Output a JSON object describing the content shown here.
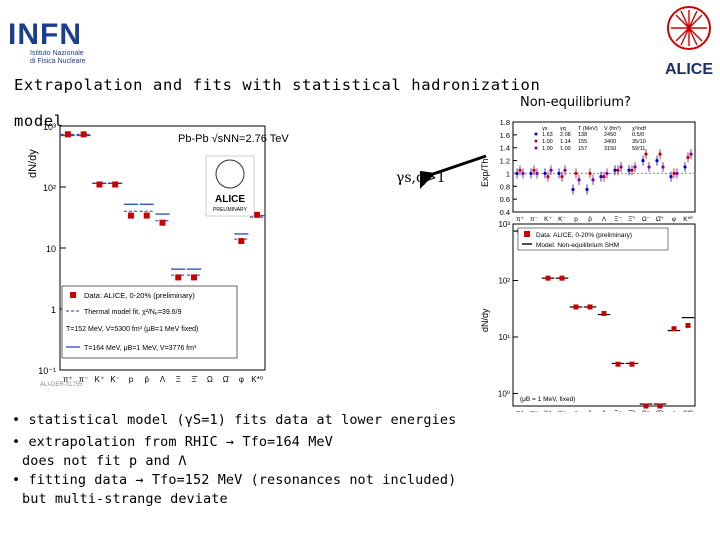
{
  "logos": {
    "infn": "INFN",
    "infn_sub": [
      "Istituto Nazionale",
      "di Fisica Nucleare"
    ],
    "alice": "ALICE"
  },
  "slide": {
    "title_line1": "Extrapolation and fits with statistical hadronization",
    "title_line2": "model",
    "nonequilibrium_label": "Non-equilibrium?",
    "gamma_label": "γs,q>1",
    "bullets": [
      "• statistical model (γS=1) fits data at lower energies",
      "• extrapolation from RHIC → Tfo=164 MeV",
      "does not fit p and Λ",
      "• fitting data → Tfo=152 MeV (resonances not included)",
      "but multi-strange deviate"
    ]
  },
  "colors": {
    "data": "#cc0000",
    "fit_152": "#2233aa",
    "fit_164": "#3355cc",
    "ratio_1": "#0000cc",
    "ratio_2": "#cc0000",
    "ratio_3": "#7a00aa"
  },
  "chart_data": [
    {
      "type": "scatter",
      "name": "left-yields",
      "title": "Pb-Pb √sNN=2.76 TeV",
      "ylabel": "dN/dy",
      "yscale": "log",
      "ylim": [
        0.1,
        1000
      ],
      "y_ticks": [
        "10⁻¹",
        "1",
        "10",
        "10²",
        "10³"
      ],
      "categories": [
        "π⁺",
        "π⁻",
        "K⁺",
        "K⁻",
        "p",
        "p̄",
        "Λ",
        "Ξ",
        "Ξ̄",
        "Ω",
        "Ω̄",
        "φ",
        "K*⁰"
      ],
      "values": [
        730,
        730,
        110,
        110,
        34,
        34,
        26,
        3.3,
        3.3,
        0.62,
        0.62,
        13,
        35
      ],
      "fit_152": [
        730,
        730,
        115,
        115,
        40,
        40,
        28,
        3.6,
        3.6,
        0.62,
        0.62,
        14,
        32
      ],
      "fit_164": [
        700,
        700,
        115,
        115,
        52,
        52,
        36,
        4.5,
        4.5,
        0.78,
        0.78,
        17,
        34
      ],
      "legend": [
        "Data: ALICE, 0-20% (preliminary)",
        "Thermal model fit, χ²/Nₚ=39.6/9",
        "T=152 MeV, V=5300 fm³ (μB=1 MeV fixed)",
        "T=164 MeV, μB=1 MeV, V=3776 fm³"
      ],
      "badge": "ALICE",
      "badge_sub": "PRELIMINARY",
      "footnote": "ALI-DER-31755",
      "legend_position": "bottom-left"
    },
    {
      "type": "scatter",
      "name": "right-ratio",
      "ylabel": "Exp/Th",
      "ylim": [
        0.4,
        1.8
      ],
      "y_ticks": [
        "0.4",
        "0.6",
        "0.8",
        "1",
        "1.2",
        "1.4",
        "1.6",
        "1.8"
      ],
      "categories": [
        "π⁺",
        "π⁻",
        "K⁺",
        "K⁻",
        "p",
        "p̄",
        "Λ",
        "Ξ⁻",
        "Ξ̄⁺",
        "Ω⁻",
        "Ω̄⁺",
        "φ",
        "K*⁰"
      ],
      "series": [
        {
          "values": [
            1.0,
            1.0,
            1.0,
            1.0,
            0.75,
            0.75,
            0.95,
            1.05,
            1.05,
            1.2,
            1.2,
            0.95,
            1.1
          ]
        },
        {
          "values": [
            1.05,
            1.05,
            0.95,
            0.95,
            1.0,
            1.0,
            0.95,
            1.05,
            1.05,
            1.3,
            1.3,
            1.0,
            1.25
          ]
        },
        {
          "values": [
            1.0,
            1.0,
            1.05,
            1.05,
            0.9,
            0.9,
            1.0,
            1.1,
            1.1,
            1.1,
            1.1,
            1.0,
            1.3
          ]
        }
      ],
      "table_header": [
        "γs",
        "γq",
        "T (MeV)",
        "V (fm³)",
        "χ²/ndf"
      ],
      "table_rows": [
        [
          "1.63",
          "2.08",
          "138",
          "2450",
          "0.5/0"
        ],
        [
          "1.00",
          "1.14",
          "155",
          "3400",
          "35/10"
        ],
        [
          "1.00",
          "1.00",
          "157",
          "3150",
          "59/11"
        ]
      ]
    },
    {
      "type": "scatter",
      "name": "right-yields",
      "ylabel": "dN/dy",
      "yscale": "log",
      "ylim": [
        0.6,
        1000
      ],
      "y_ticks": [
        "10⁰",
        "10¹",
        "10²",
        "10³"
      ],
      "categories": [
        "π⁺",
        "π⁻",
        "K⁺",
        "K⁻",
        "p",
        "p̄",
        "Λ",
        "Ξ⁻",
        "Ξ̄⁺",
        "Ω⁻",
        "Ω̄⁺",
        "φ",
        "K*⁰"
      ],
      "values": [
        750,
        750,
        110,
        110,
        34,
        34,
        26,
        3.3,
        3.3,
        0.6,
        0.6,
        14,
        16
      ],
      "model": [
        750,
        750,
        110,
        110,
        34,
        34,
        25,
        3.4,
        3.4,
        0.65,
        0.65,
        13,
        22
      ],
      "legend": [
        "Data: ALICE, 0-20% (preliminary)",
        "Model: Non-equilibrium SHM"
      ],
      "footnote": "(μB = 1 MeV, fixed)",
      "legend_position": "top-left"
    }
  ]
}
